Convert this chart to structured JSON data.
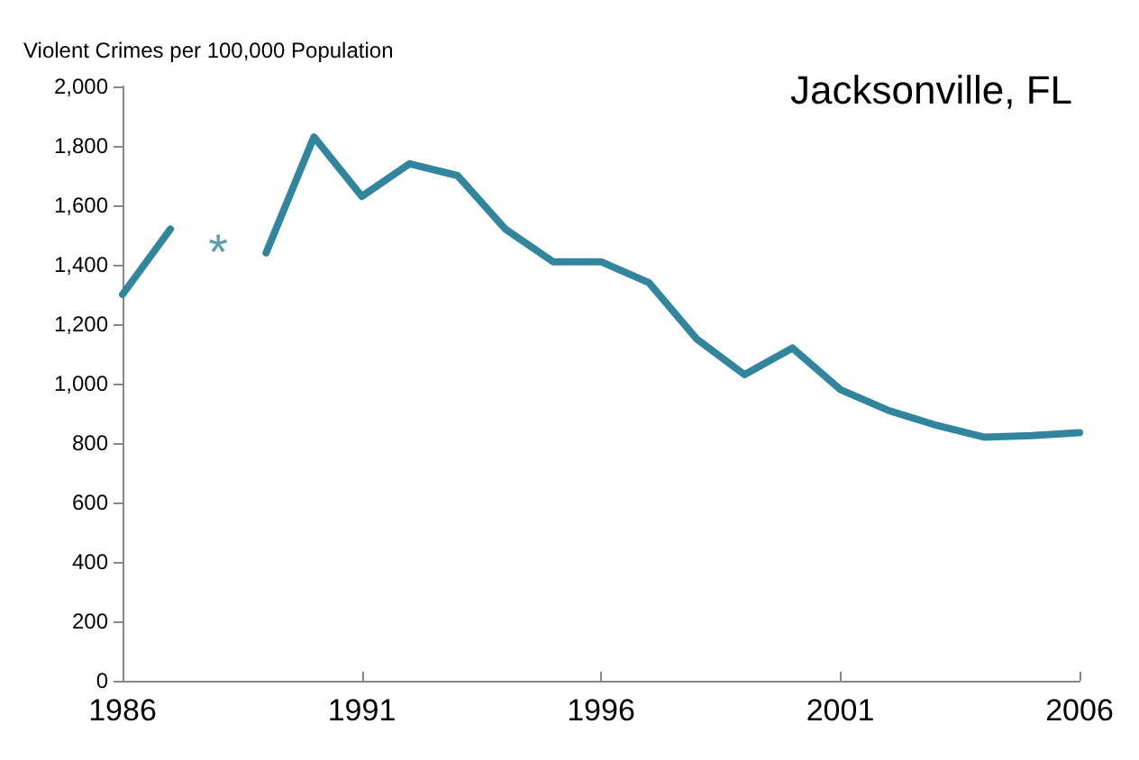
{
  "chart_data": {
    "type": "line",
    "title": "Jacksonville, FL",
    "ylabel": "Violent Crimes per 100,000 Population",
    "x": [
      1986,
      1987,
      1988,
      1989,
      1990,
      1991,
      1992,
      1993,
      1994,
      1995,
      1996,
      1997,
      1998,
      1999,
      2000,
      2001,
      2002,
      2003,
      2004,
      2005,
      2006
    ],
    "series": [
      {
        "color": "#31859c",
        "values": [
          1300,
          1520,
          null,
          1440,
          1830,
          1630,
          1740,
          1700,
          1520,
          1410,
          1410,
          1340,
          1150,
          1030,
          1120,
          980,
          910,
          860,
          820,
          825,
          835
        ]
      }
    ],
    "annotations": [
      "*"
    ],
    "xlim": [
      1986,
      2006
    ],
    "xticks": [
      1986,
      1991,
      1996,
      2001,
      2006
    ],
    "ylim": [
      0,
      2000
    ],
    "yticks": [
      0,
      {
        "value": 200,
        "label": "200"
      },
      {
        "value": 400,
        "label": "400"
      },
      {
        "value": 600,
        "label": "600"
      },
      {
        "value": 800,
        "label": "800"
      },
      {
        "value": 1000,
        "label": "1,000"
      },
      {
        "value": 1200,
        "label": "1,200"
      },
      {
        "value": 1400,
        "label": "1,400"
      },
      {
        "value": 1600,
        "label": "1,600"
      },
      {
        "value": 1800,
        "label": "1,800"
      },
      {
        "value": 2000,
        "label": "2,000"
      }
    ],
    "grid": false,
    "marker": "none",
    "line_style": "solid"
  }
}
